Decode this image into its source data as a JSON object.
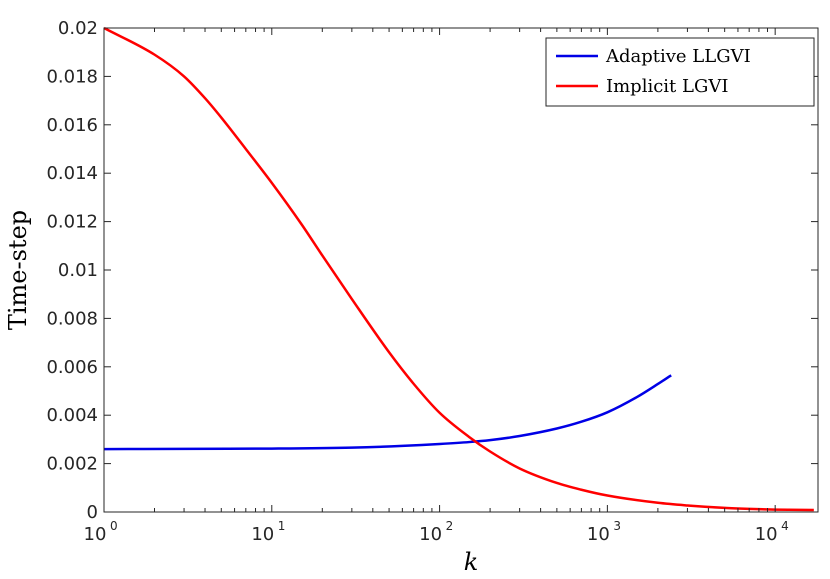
{
  "chart_data": {
    "type": "line",
    "xlabel": "k",
    "ylabel": "Time-step",
    "xscale": "log",
    "xlim": [
      1,
      18000
    ],
    "ylim": [
      0,
      0.02
    ],
    "x_ticks": [
      {
        "value": 1,
        "base": "10",
        "exp": "0"
      },
      {
        "value": 10,
        "base": "10",
        "exp": "1"
      },
      {
        "value": 100,
        "base": "10",
        "exp": "2"
      },
      {
        "value": 1000,
        "base": "10",
        "exp": "3"
      },
      {
        "value": 10000,
        "base": "10",
        "exp": "4"
      }
    ],
    "y_ticks": [
      {
        "value": 0,
        "label": "0"
      },
      {
        "value": 0.002,
        "label": "0.002"
      },
      {
        "value": 0.004,
        "label": "0.004"
      },
      {
        "value": 0.006,
        "label": "0.006"
      },
      {
        "value": 0.008,
        "label": "0.008"
      },
      {
        "value": 0.01,
        "label": "0.01"
      },
      {
        "value": 0.012,
        "label": "0.012"
      },
      {
        "value": 0.014,
        "label": "0.014"
      },
      {
        "value": 0.016,
        "label": "0.016"
      },
      {
        "value": 0.018,
        "label": "0.018"
      },
      {
        "value": 0.02,
        "label": "0.02"
      }
    ],
    "grid": false,
    "legend_position": "top-right",
    "series": [
      {
        "name": "Adaptive LLGVI",
        "color": "#0000e6",
        "x": [
          1,
          3,
          10,
          30,
          60,
          100,
          150,
          200,
          300,
          500,
          700,
          1000,
          1500,
          2000,
          2400
        ],
        "y": [
          0.0026,
          0.00261,
          0.00262,
          0.00266,
          0.00273,
          0.00281,
          0.00289,
          0.00297,
          0.00314,
          0.00345,
          0.00373,
          0.00412,
          0.00475,
          0.00529,
          0.00565
        ]
      },
      {
        "name": "Implicit LGVI",
        "color": "#ff0000",
        "x": [
          1,
          2,
          3,
          4,
          5,
          7,
          10,
          15,
          20,
          30,
          50,
          70,
          100,
          150,
          200,
          300,
          500,
          700,
          1000,
          2000,
          3000,
          5000,
          7000,
          10000,
          17000
        ],
        "y": [
          0.02,
          0.0189,
          0.018,
          0.0171,
          0.0163,
          0.015,
          0.0136,
          0.0119,
          0.0106,
          0.0088,
          0.0066,
          0.0053,
          0.0041,
          0.0031,
          0.0025,
          0.0018,
          0.0012,
          0.00092,
          0.00068,
          0.00038,
          0.00027,
          0.00017,
          0.00013,
          0.0001,
          8e-05
        ]
      }
    ]
  }
}
